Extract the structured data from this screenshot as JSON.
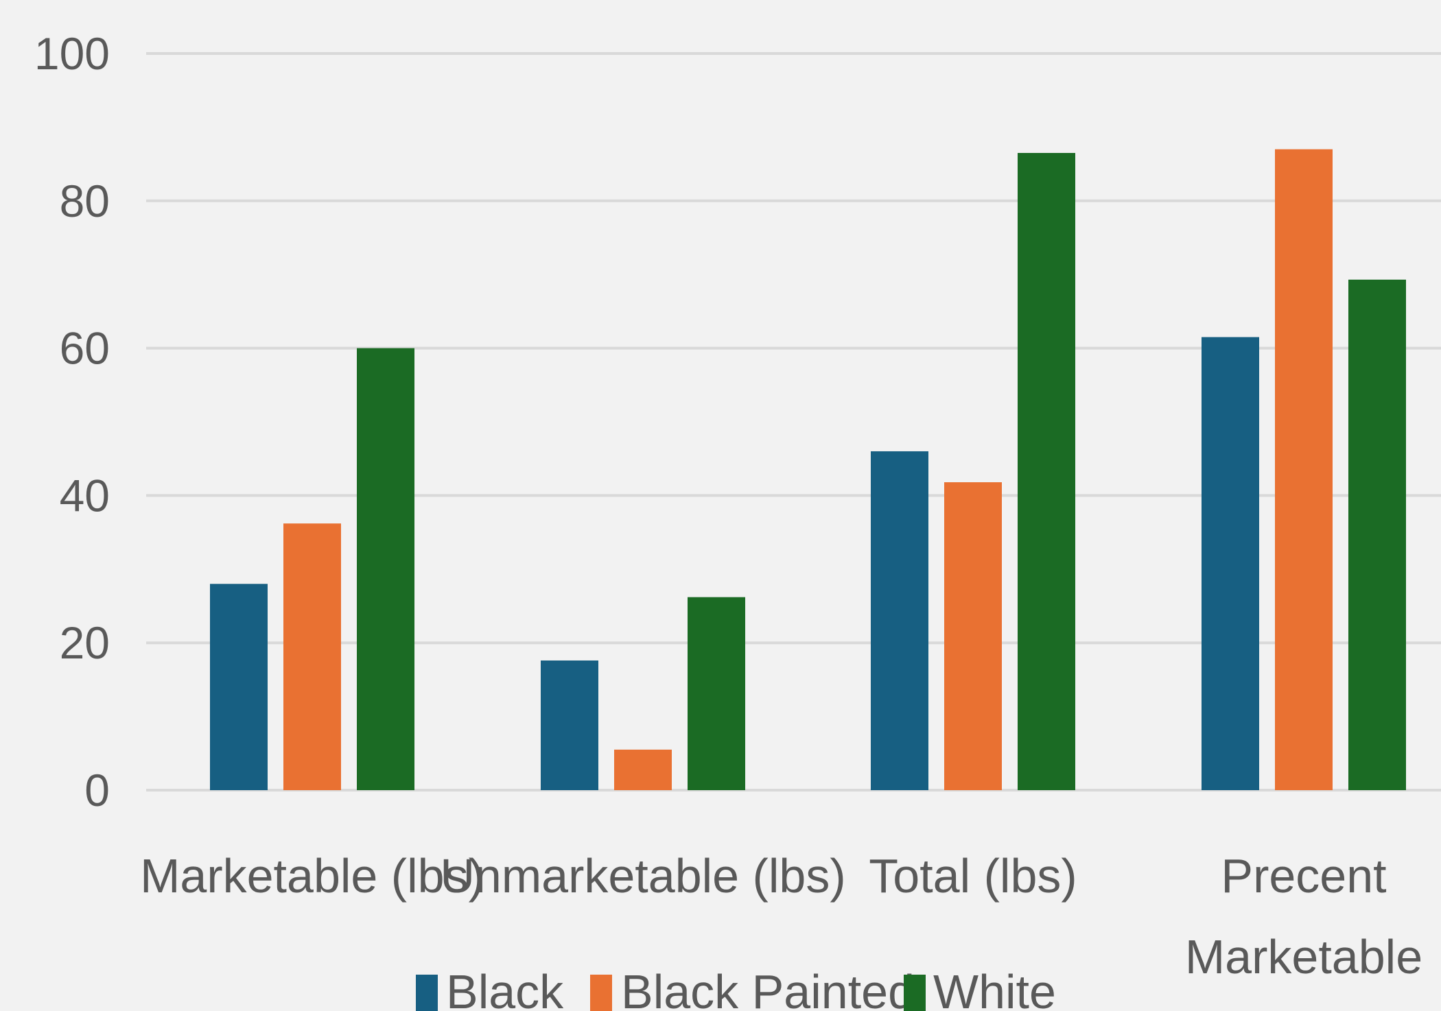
{
  "chart_data": {
    "type": "bar",
    "categories": [
      "Marketable (lbs)",
      "Unmarketable (lbs)",
      "Total (lbs)",
      "Precent Marketable"
    ],
    "series": [
      {
        "name": "Black",
        "color": "#175f82",
        "values": [
          28,
          17.6,
          46,
          61.5
        ]
      },
      {
        "name": "Black Painted",
        "color": "#e97132",
        "values": [
          36.2,
          5.5,
          41.8,
          87
        ]
      },
      {
        "name": "White",
        "color": "#1b6b24",
        "values": [
          60,
          26.2,
          86.5,
          69.3
        ]
      }
    ],
    "ylim": [
      0,
      100
    ],
    "yticks": [
      "0",
      "20",
      "40",
      "60",
      "80",
      "100"
    ],
    "grid": true,
    "legend_position": "bottom",
    "background": "#f2f2f2",
    "gridline_color": "#d9d9d9",
    "text_color": "#595959"
  }
}
